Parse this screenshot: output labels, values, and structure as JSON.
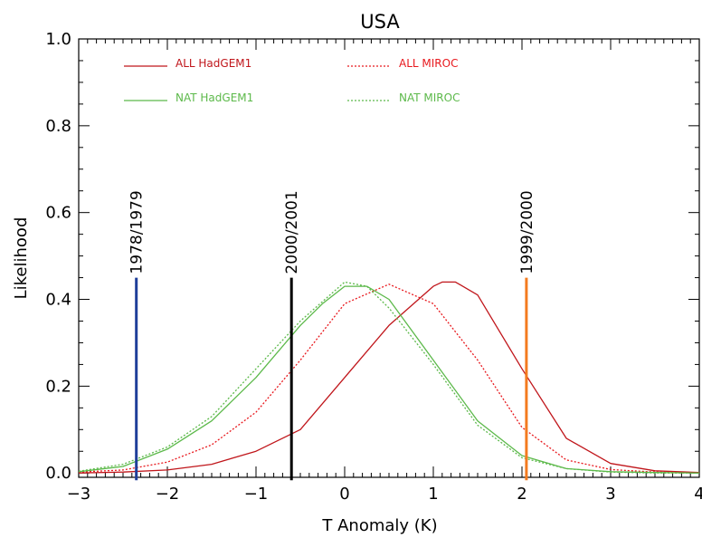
{
  "chart_data": {
    "type": "line",
    "title": "USA",
    "xlabel": "T Anomaly (K)",
    "ylabel": "Likelihood",
    "xlim": [
      -3,
      4
    ],
    "ylim": [
      -0.01,
      1.0
    ],
    "xticks": [
      -3,
      -2,
      -1,
      0,
      1,
      2,
      3,
      4
    ],
    "xtick_labels": [
      "−3",
      "−2",
      "−1",
      "0",
      "1",
      "2",
      "3",
      "4"
    ],
    "yticks": [
      0.0,
      0.2,
      0.4,
      0.6,
      0.8,
      1.0
    ],
    "ytick_labels": [
      "0.0",
      "0.2",
      "0.4",
      "0.6",
      "0.8",
      "1.0"
    ],
    "grid": false,
    "legend_position": "top",
    "series": [
      {
        "name": "ALL HadGEM1",
        "color": "#c0161b",
        "dash": "solid",
        "x": [
          -3,
          -2.5,
          -2,
          -1.5,
          -1,
          -0.5,
          0,
          0.5,
          1,
          1.1,
          1.25,
          1.5,
          2,
          2.5,
          3,
          3.5,
          4
        ],
        "y": [
          0.0,
          0.002,
          0.007,
          0.02,
          0.05,
          0.1,
          0.22,
          0.34,
          0.43,
          0.44,
          0.44,
          0.41,
          0.24,
          0.08,
          0.022,
          0.005,
          0.001
        ]
      },
      {
        "name": "ALL MIROC",
        "color": "#e8191e",
        "dash": "dotted",
        "x": [
          -3,
          -2.5,
          -2,
          -1.5,
          -1,
          -0.5,
          0,
          0.5,
          1,
          1.5,
          2,
          2.5,
          3,
          3.5,
          4
        ],
        "y": [
          0.002,
          0.007,
          0.025,
          0.065,
          0.14,
          0.26,
          0.39,
          0.435,
          0.39,
          0.26,
          0.105,
          0.03,
          0.008,
          0.002,
          0.0
        ]
      },
      {
        "name": "NAT HadGEM1",
        "color": "#5cb94a",
        "dash": "solid",
        "x": [
          -3,
          -2.5,
          -2,
          -1.5,
          -1,
          -0.5,
          -0.25,
          0,
          0.25,
          0.5,
          1,
          1.5,
          2,
          2.5,
          3,
          3.5,
          4
        ],
        "y": [
          0.003,
          0.015,
          0.055,
          0.12,
          0.22,
          0.34,
          0.39,
          0.43,
          0.43,
          0.4,
          0.26,
          0.12,
          0.04,
          0.01,
          0.003,
          0.001,
          0.0
        ]
      },
      {
        "name": "NAT MIROC",
        "color": "#5cb94a",
        "dash": "dotted",
        "x": [
          -3,
          -2.5,
          -2,
          -1.5,
          -1,
          -0.5,
          0,
          0.25,
          0.5,
          1,
          1.5,
          2,
          2.5,
          3,
          3.5,
          4
        ],
        "y": [
          0.004,
          0.02,
          0.06,
          0.13,
          0.24,
          0.35,
          0.44,
          0.43,
          0.38,
          0.25,
          0.11,
          0.035,
          0.01,
          0.002,
          0.0,
          0.0
        ]
      }
    ],
    "markers": [
      {
        "label": "1978/1979",
        "x": -2.35,
        "y": 0.45,
        "color": "#1f3f9a"
      },
      {
        "label": "2000/2001",
        "x": -0.6,
        "y": 0.45,
        "color": "#000000"
      },
      {
        "label": "1999/2000",
        "x": 2.05,
        "y": 0.45,
        "color": "#f47b20"
      }
    ]
  }
}
